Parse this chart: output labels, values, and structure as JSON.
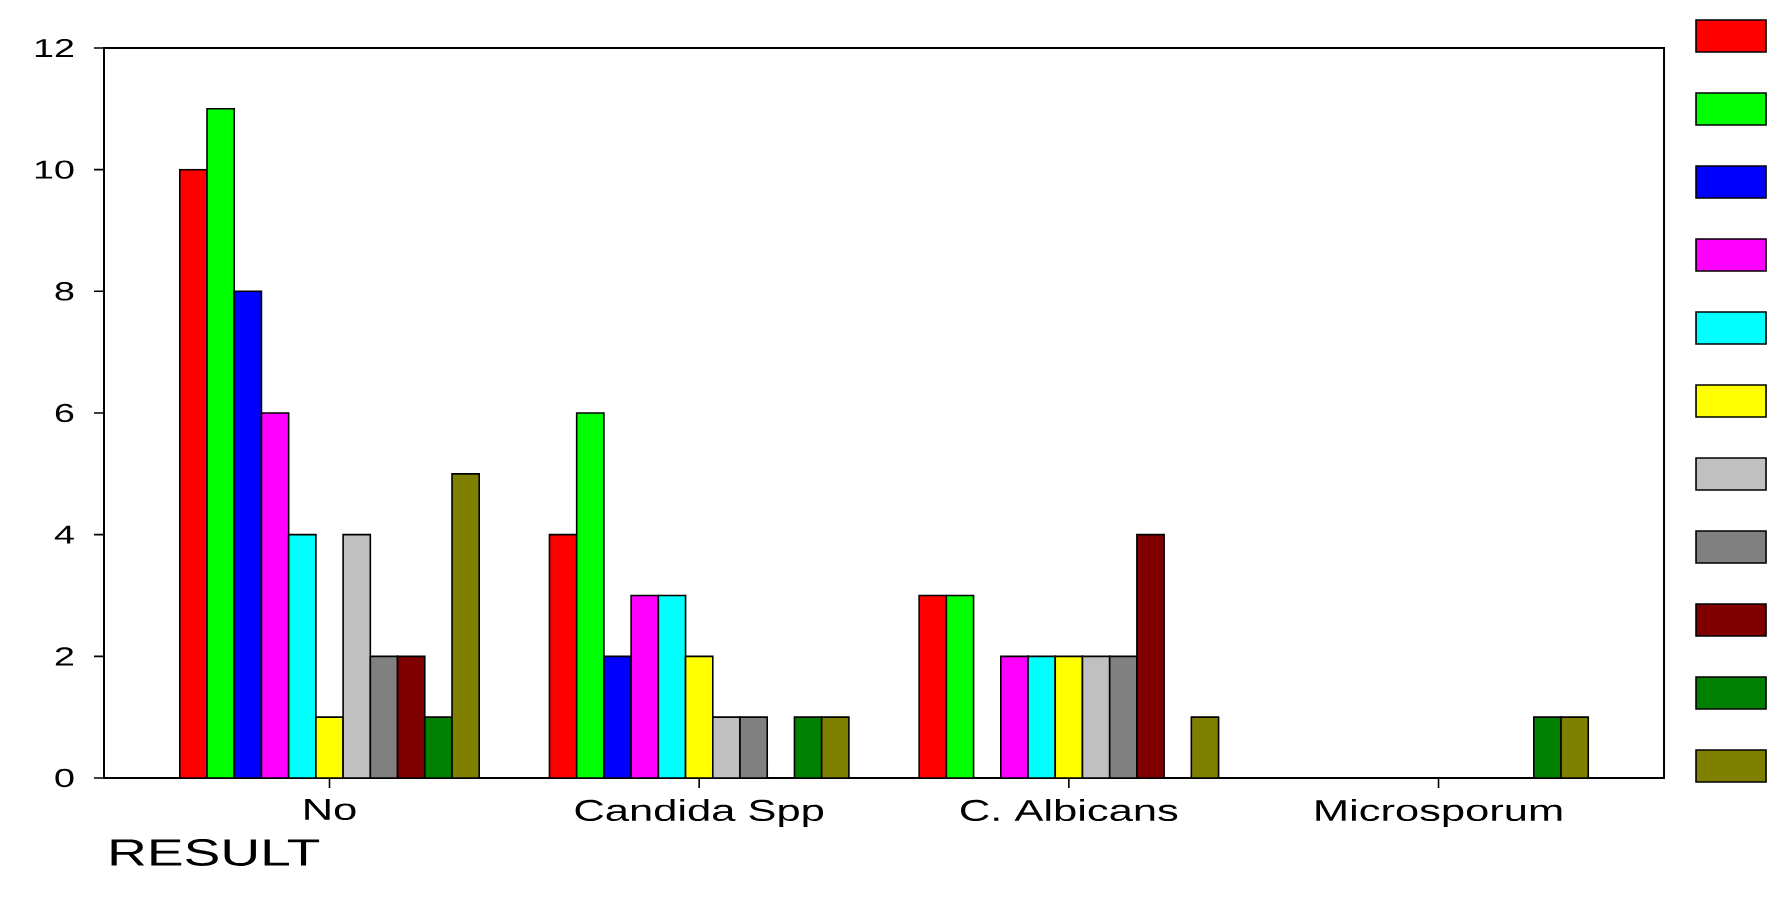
{
  "chart_data": {
    "type": "bar",
    "xlabel": "RESULT",
    "categories": [
      "No",
      "Candida Spp",
      "C. Albicans",
      "Microsporum"
    ],
    "series": [
      {
        "color": "#ff0000",
        "values": [
          10,
          4,
          3,
          null
        ]
      },
      {
        "color": "#00ff00",
        "values": [
          11,
          6,
          3,
          null
        ]
      },
      {
        "color": "#0000ff",
        "values": [
          8,
          2,
          null,
          null
        ]
      },
      {
        "color": "#ff00ff",
        "values": [
          6,
          3,
          2,
          null
        ]
      },
      {
        "color": "#00ffff",
        "values": [
          4,
          3,
          2,
          null
        ]
      },
      {
        "color": "#ffff00",
        "values": [
          1,
          2,
          2,
          null
        ]
      },
      {
        "color": "#c0c0c0",
        "values": [
          4,
          1,
          2,
          null
        ]
      },
      {
        "color": "#808080",
        "values": [
          2,
          1,
          2,
          null
        ]
      },
      {
        "color": "#800000",
        "values": [
          2,
          null,
          4,
          null
        ]
      },
      {
        "color": "#008000",
        "values": [
          1,
          1,
          null,
          1
        ]
      },
      {
        "color": "#808000",
        "values": [
          5,
          1,
          1,
          1
        ]
      }
    ],
    "ylim": [
      0,
      12
    ],
    "yticks": [
      0,
      2,
      4,
      6,
      8,
      10,
      12
    ]
  }
}
